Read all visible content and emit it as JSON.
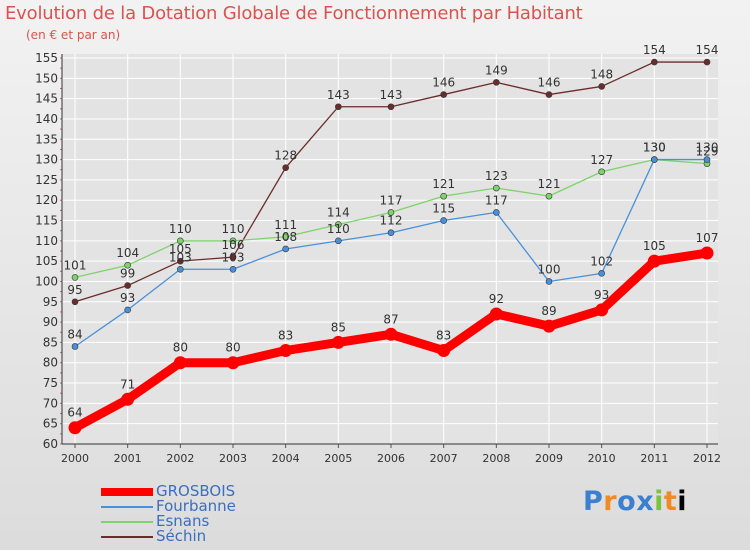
{
  "header": {
    "title": "Evolution de la Dotation Globale de Fonctionnement par Habitant",
    "subtitle": "(en € et par an)"
  },
  "logo": {
    "text": "Proxiti"
  },
  "colors": {
    "GROSBOIS": "#ff0000",
    "Fourbanne": "#4a90d9",
    "Esnans": "#7ed36b",
    "Séchin": "#6b2c2c",
    "axis_text": "#333333",
    "grid": "#ffffff",
    "ytick_red": "#e06060"
  },
  "chart_data": {
    "type": "line",
    "title": "Evolution de la Dotation Globale de Fonctionnement par Habitant",
    "subtitle": "(en € et par an)",
    "x": [
      "2000",
      "2001",
      "2002",
      "2003",
      "2004",
      "2005",
      "2006",
      "2007",
      "2008",
      "2009",
      "2010",
      "2011",
      "2012"
    ],
    "ylim": [
      60,
      155
    ],
    "yticks": [
      60,
      65,
      70,
      75,
      80,
      85,
      90,
      95,
      100,
      105,
      110,
      115,
      120,
      125,
      130,
      135,
      140,
      145,
      150,
      155
    ],
    "grid": true,
    "legend_position": "bottom-left",
    "series": [
      {
        "name": "GROSBOIS",
        "values": [
          64,
          71,
          80,
          80,
          83,
          85,
          87,
          83,
          92,
          89,
          93,
          105,
          107
        ]
      },
      {
        "name": "Fourbanne",
        "values": [
          84,
          93,
          103,
          103,
          108,
          110,
          112,
          115,
          117,
          100,
          102,
          130,
          130
        ]
      },
      {
        "name": "Esnans",
        "values": [
          101,
          104,
          110,
          110,
          111,
          114,
          117,
          121,
          123,
          121,
          127,
          130,
          129
        ]
      },
      {
        "name": "Séchin",
        "values": [
          95,
          99,
          105,
          106,
          128,
          143,
          143,
          146,
          149,
          146,
          148,
          154,
          154
        ]
      }
    ]
  }
}
